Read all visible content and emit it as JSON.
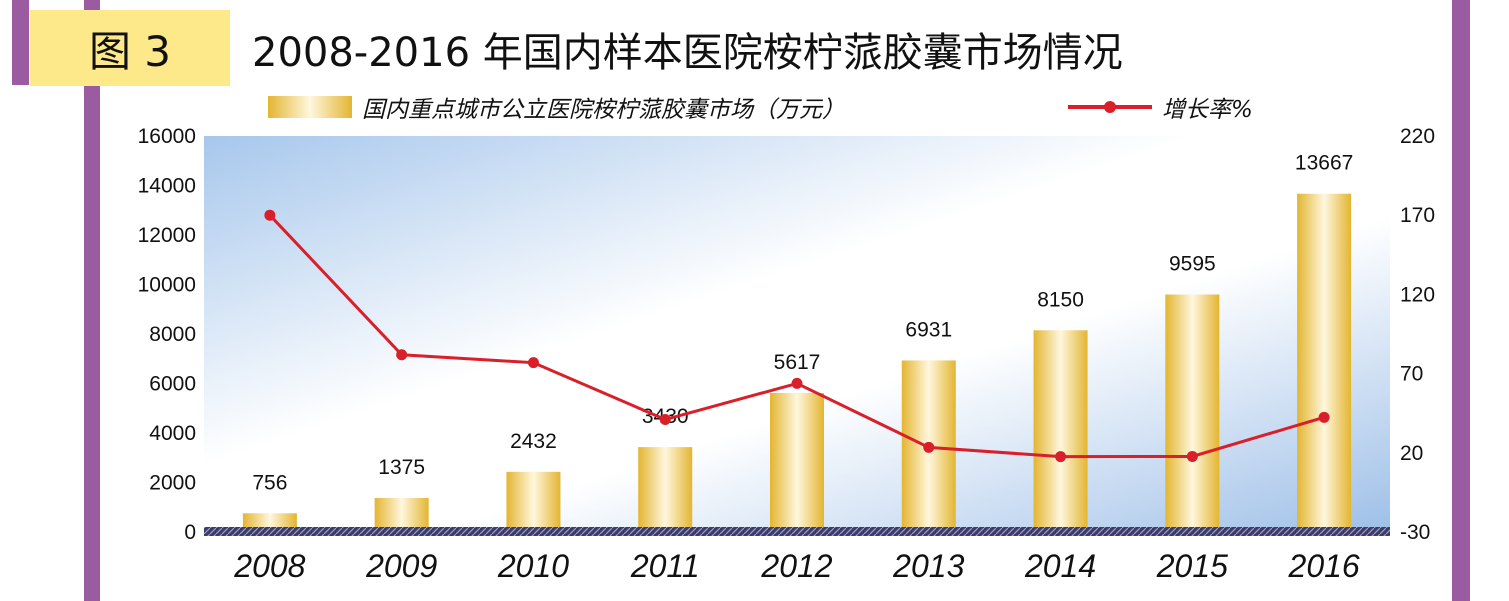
{
  "header": {
    "figure_label": "图 3",
    "title": "2008-2016 年国内样本医院桉柠蒎胶囊市场情况"
  },
  "colors": {
    "frame": "#9b5ba0",
    "badge": "#fde98a",
    "bar_gold": "#e3b531",
    "line_red": "#d81f2a"
  },
  "chart_data": {
    "type": "bar+line",
    "categories": [
      "2008",
      "2009",
      "2010",
      "2011",
      "2012",
      "2013",
      "2014",
      "2015",
      "2016"
    ],
    "series": [
      {
        "name": "国内重点城市公立医院桉柠蒎胶囊市场（万元）",
        "type": "bar",
        "axis": "left",
        "values": [
          756,
          1375,
          2432,
          3430,
          5617,
          6931,
          8150,
          9595,
          13667
        ]
      },
      {
        "name": "增长率%",
        "type": "line",
        "axis": "right",
        "values": [
          170,
          81.9,
          76.9,
          41.0,
          63.8,
          23.4,
          17.6,
          17.7,
          42.4
        ]
      }
    ],
    "left_axis": {
      "min": 0,
      "max": 16000,
      "ticks": [
        0,
        2000,
        4000,
        6000,
        8000,
        10000,
        12000,
        14000,
        16000
      ]
    },
    "right_axis": {
      "min": -30,
      "max": 220,
      "ticks": [
        -30,
        20,
        70,
        120,
        170,
        220
      ]
    },
    "legend_position": "top"
  }
}
